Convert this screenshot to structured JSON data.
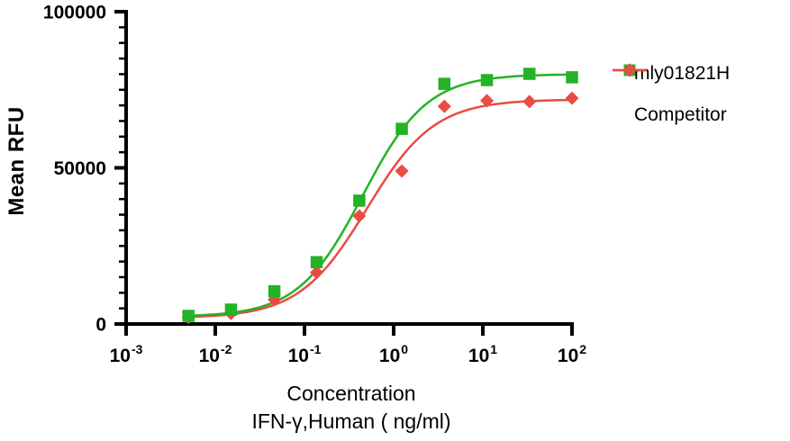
{
  "figure": {
    "background": "#ffffff",
    "axis_color": "#000000"
  },
  "legend": {
    "position": "right",
    "items": [
      {
        "label": "mly01821H",
        "marker": "square",
        "color": "#24b226"
      },
      {
        "label": "Competitor",
        "marker": "diamond",
        "color": "#e84c44"
      }
    ]
  },
  "chart_data": {
    "type": "scatter",
    "subtype": "dose-response-4PL",
    "title": "",
    "xlabel_line1": "Concentration",
    "xlabel_line2": "IFN-γ,Human ( ng/ml)",
    "ylabel": "Mean RFU",
    "x_scale": "log10",
    "xlim": [
      0.001,
      100
    ],
    "ylim": [
      0,
      100000
    ],
    "x_ticks": [
      0.001,
      0.01,
      0.1,
      1,
      10,
      100
    ],
    "y_major_ticks": [
      0,
      50000,
      100000
    ],
    "y_minor_step": 5000,
    "grid": false,
    "x": [
      0.005,
      0.015,
      0.046,
      0.137,
      0.412,
      1.235,
      3.704,
      11.111,
      33.333,
      100
    ],
    "series": [
      {
        "name": "mly01821H",
        "marker": "square",
        "color": "#24b226",
        "values": [
          2600,
          4600,
          10500,
          19800,
          39500,
          62500,
          76900,
          78100,
          80100,
          79000
        ],
        "fit": {
          "bottom": 2300,
          "top": 80000,
          "ec50": 0.45,
          "hill": 1.2
        }
      },
      {
        "name": "Competitor",
        "marker": "diamond",
        "color": "#e84c44",
        "values": [
          2100,
          3400,
          7800,
          16500,
          34600,
          49000,
          69700,
          71500,
          71200,
          72300
        ],
        "fit": {
          "bottom": 1900,
          "top": 71900,
          "ec50": 0.5,
          "hill": 1.15
        }
      }
    ]
  }
}
